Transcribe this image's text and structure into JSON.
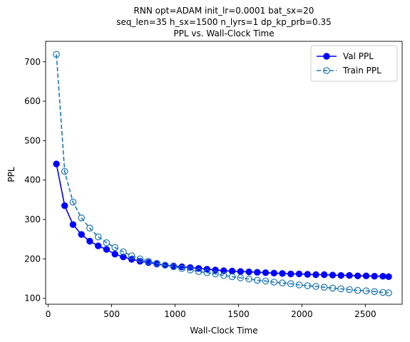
{
  "chart_data": {
    "type": "line",
    "title_lines": [
      "RNN opt=ADAM init_lr=0.0001 bat_sx=20",
      "seq_len=35 h_sx=1500 n_lyrs=1 dp_kp_prb=0.35",
      "PPL vs. Wall-Clock Time"
    ],
    "xlabel": "Wall-Clock Time",
    "ylabel": "PPL",
    "xlim": [
      -20,
      2790
    ],
    "ylim": [
      85,
      752
    ],
    "xticks": [
      0,
      500,
      1000,
      1500,
      2000,
      2500
    ],
    "yticks": [
      100,
      200,
      300,
      400,
      500,
      600,
      700
    ],
    "legend_position": "top-right",
    "series": [
      {
        "name": "Val PPL",
        "color": "#0000ff",
        "line_style": "solid",
        "marker": "filled-circle",
        "x": [
          65,
          130,
          196,
          262,
          328,
          394,
          460,
          526,
          592,
          658,
          724,
          790,
          856,
          922,
          988,
          1054,
          1120,
          1186,
          1252,
          1318,
          1384,
          1450,
          1516,
          1582,
          1648,
          1714,
          1780,
          1846,
          1912,
          1978,
          2044,
          2110,
          2176,
          2242,
          2308,
          2374,
          2440,
          2506,
          2572,
          2638,
          2684
        ],
        "y": [
          441,
          335,
          287,
          262,
          245,
          233,
          224,
          212,
          205,
          199,
          194,
          191,
          187,
          184,
          182,
          180,
          178,
          176,
          174,
          172,
          170,
          169,
          168,
          167,
          166,
          165,
          164,
          163,
          162,
          162,
          161,
          160,
          160,
          159,
          158,
          158,
          157,
          157,
          156,
          156,
          155
        ]
      },
      {
        "name": "Train PPL",
        "color": "#1f77b4",
        "line_style": "dashed",
        "marker": "open-circle",
        "x": [
          65,
          130,
          196,
          262,
          328,
          394,
          460,
          526,
          592,
          658,
          724,
          790,
          856,
          922,
          988,
          1054,
          1120,
          1186,
          1252,
          1318,
          1384,
          1450,
          1516,
          1582,
          1648,
          1714,
          1780,
          1846,
          1912,
          1978,
          2044,
          2110,
          2176,
          2242,
          2308,
          2374,
          2440,
          2506,
          2572,
          2638,
          2684
        ],
        "y": [
          719,
          422,
          344,
          304,
          278,
          256,
          241,
          229,
          218,
          208,
          200,
          194,
          189,
          184,
          180,
          176,
          172,
          168,
          165,
          162,
          158,
          155,
          152,
          149,
          146,
          144,
          141,
          139,
          137,
          134,
          132,
          130,
          128,
          126,
          124,
          122,
          120,
          119,
          117,
          115,
          114
        ]
      }
    ]
  }
}
